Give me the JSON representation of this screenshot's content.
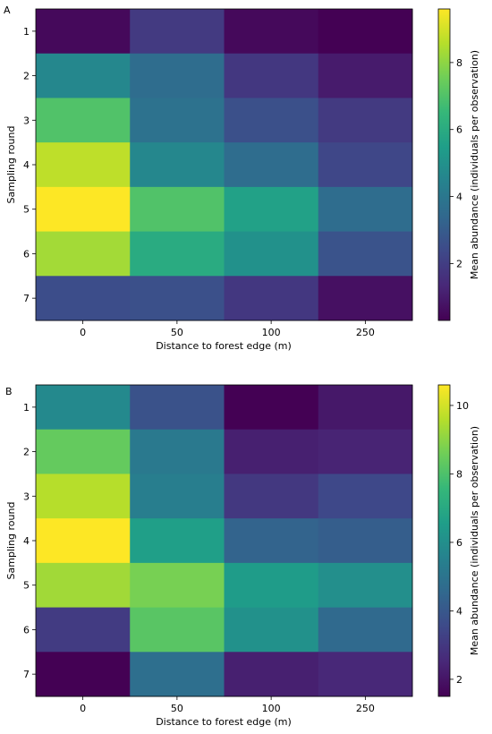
{
  "chart_data": [
    {
      "type": "heatmap",
      "panel_label": "A",
      "xlabel": "Distance to forest edge (m)",
      "ylabel": "Sampling round",
      "x_categories": [
        "0",
        "50",
        "100",
        "250"
      ],
      "y_categories": [
        "1",
        "2",
        "3",
        "4",
        "5",
        "6",
        "7"
      ],
      "values": [
        [
          0.5,
          1.9,
          0.5,
          0.3
        ],
        [
          4.6,
          3.6,
          1.8,
          1.0
        ],
        [
          7.0,
          3.8,
          2.6,
          1.9
        ],
        [
          8.7,
          4.6,
          3.6,
          2.3
        ],
        [
          9.6,
          7.0,
          5.6,
          3.6
        ],
        [
          8.3,
          6.0,
          5.0,
          2.7
        ],
        [
          2.5,
          2.6,
          1.8,
          0.7
        ]
      ],
      "colorbar": {
        "label": "Mean abundance (individuals per observation)",
        "min": 0.3,
        "max": 9.6,
        "ticks": [
          2,
          4,
          6,
          8
        ],
        "colormap": "viridis"
      }
    },
    {
      "type": "heatmap",
      "panel_label": "B",
      "xlabel": "Distance to forest edge (m)",
      "ylabel": "Sampling round",
      "x_categories": [
        "0",
        "50",
        "100",
        "250"
      ],
      "y_categories": [
        "1",
        "2",
        "3",
        "4",
        "5",
        "6",
        "7"
      ],
      "values": [
        [
          5.8,
          3.8,
          1.5,
          2.1
        ],
        [
          8.4,
          5.2,
          2.3,
          2.4
        ],
        [
          9.6,
          5.4,
          3.0,
          3.5
        ],
        [
          10.6,
          6.6,
          4.4,
          4.2
        ],
        [
          9.3,
          8.7,
          6.5,
          6.0
        ],
        [
          3.1,
          8.2,
          6.1,
          4.6
        ],
        [
          1.5,
          4.8,
          2.3,
          2.5
        ]
      ],
      "colorbar": {
        "label": "Mean abundance (individuals per observation)",
        "min": 1.5,
        "max": 10.6,
        "ticks": [
          2,
          4,
          6,
          8,
          10
        ],
        "colormap": "viridis"
      }
    }
  ]
}
